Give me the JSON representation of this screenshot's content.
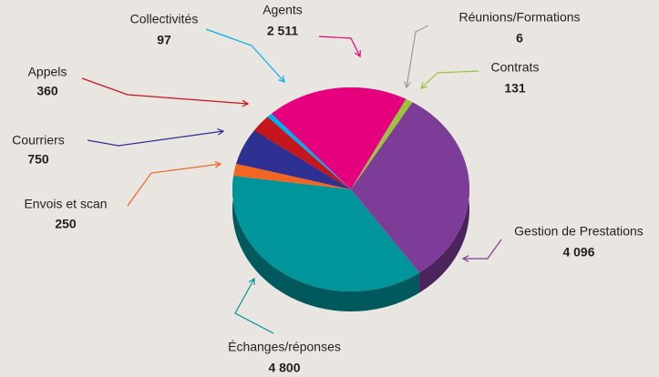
{
  "chart_data": {
    "type": "pie",
    "categories": [
      "Agents",
      "Réunions/Formations",
      "Contrats",
      "Gestion de Prestations",
      "Échanges/réponses",
      "Envois et scan",
      "Courriers",
      "Appels",
      "Collectivités"
    ],
    "values": [
      2511,
      6,
      131,
      4096,
      4800,
      250,
      750,
      360,
      97
    ],
    "value_labels": [
      "2 511",
      "6",
      "131",
      "4 096",
      "4 800",
      "250",
      "750",
      "360",
      "97"
    ],
    "colors": [
      "#e5007e",
      "#9a9a9a",
      "#9bc43a",
      "#7d3c98",
      "#00959a",
      "#f26522",
      "#2e3192",
      "#c4161c",
      "#00aeef"
    ]
  }
}
